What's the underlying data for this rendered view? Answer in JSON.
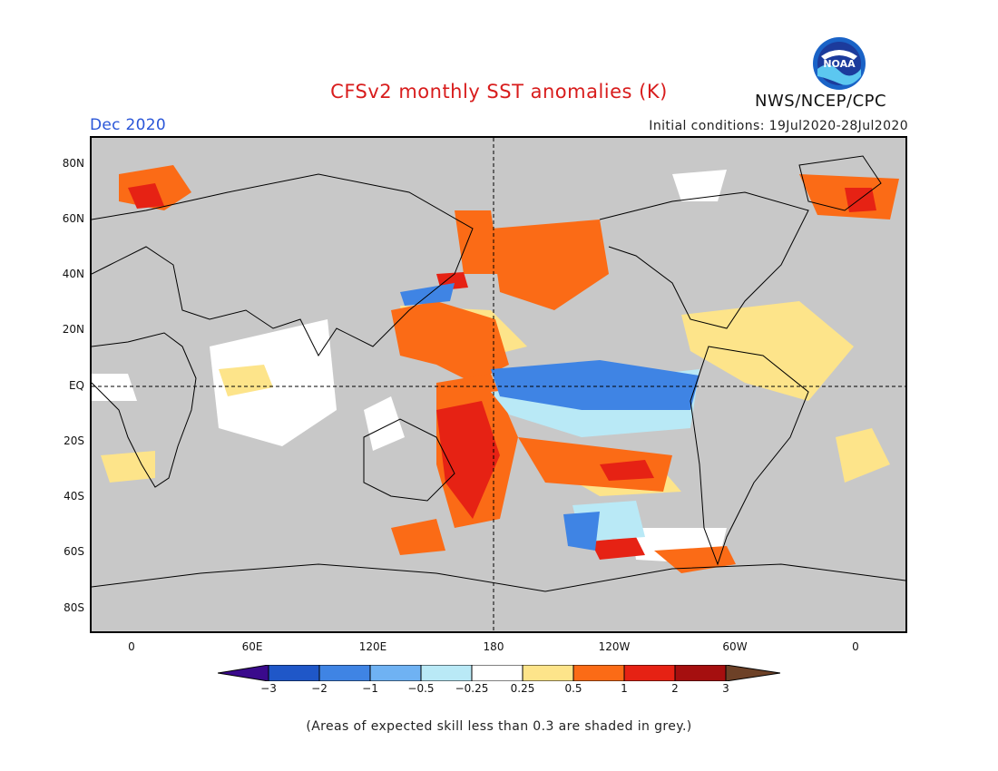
{
  "title": "CFSv2 monthly SST anomalies (K)",
  "org": "NWS/NCEP/CPC",
  "logo_text": "NOAA",
  "period": "Dec 2020",
  "initial_conditions": "Initial conditions: 19Jul2020-28Jul2020",
  "lat_labels": [
    "80N",
    "60N",
    "40N",
    "20N",
    "EQ",
    "20S",
    "40S",
    "60S",
    "80S"
  ],
  "lon_labels": [
    "0",
    "60E",
    "120E",
    "180",
    "120W",
    "60W",
    "0"
  ],
  "colorbar": {
    "labels": [
      "−3",
      "−2",
      "−1",
      "−0.5",
      "−0.25",
      "0.25",
      "0.5",
      "1",
      "2",
      "3"
    ],
    "colors": [
      "#3a0a8c",
      "#1f57c8",
      "#3f84e4",
      "#6fb2f3",
      "#b9e9f6",
      "#ffffff",
      "#fde48a",
      "#fb6b16",
      "#e62214",
      "#a50f0f",
      "#6d4127"
    ]
  },
  "footnote": "(Areas of expected skill less than 0.3 are shaded in grey.)"
}
